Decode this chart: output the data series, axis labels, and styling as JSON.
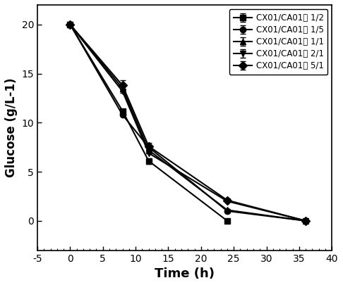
{
  "series": [
    {
      "label": "CX01/CA01： 1/2",
      "marker": "s",
      "x": [
        0,
        8,
        12,
        24
      ],
      "y": [
        20,
        11.2,
        6.1,
        0.0
      ],
      "yerr": [
        0,
        0,
        0.3,
        0
      ]
    },
    {
      "label": "CX01/CA01： 1/5",
      "marker": "o",
      "x": [
        0,
        8,
        12,
        24,
        36
      ],
      "y": [
        20,
        10.8,
        7.5,
        1.0,
        0.0
      ],
      "yerr": [
        0,
        0,
        0.25,
        0,
        0
      ]
    },
    {
      "label": "CX01/CA01： 1/1",
      "marker": "^",
      "x": [
        0,
        8,
        12,
        24,
        36
      ],
      "y": [
        20,
        13.5,
        7.2,
        1.1,
        0.0
      ],
      "yerr": [
        0,
        0.45,
        0,
        0.1,
        0
      ]
    },
    {
      "label": "CX01/CA01： 2/1",
      "marker": "v",
      "x": [
        0,
        8,
        12,
        24,
        36
      ],
      "y": [
        20,
        13.2,
        6.9,
        2.0,
        0.0
      ],
      "yerr": [
        0,
        0,
        0,
        0,
        0
      ]
    },
    {
      "label": "CX01/CA01： 5/1",
      "marker": "D",
      "x": [
        0,
        8,
        12,
        24,
        36
      ],
      "y": [
        20,
        13.8,
        7.6,
        2.1,
        0.0
      ],
      "yerr": [
        0,
        0.5,
        0.35,
        0.12,
        0
      ]
    }
  ],
  "xlabel": "Time (h)",
  "ylabel": "Glucose (g/L-1)",
  "xlim": [
    -5,
    40
  ],
  "ylim": [
    -3,
    22
  ],
  "xticks": [
    -5,
    0,
    5,
    10,
    15,
    20,
    25,
    30,
    35,
    40
  ],
  "yticks": [
    0,
    5,
    10,
    15,
    20
  ],
  "color": "#000000",
  "linewidth": 1.5,
  "markersize": 6,
  "legend_loc": "upper right",
  "figsize": [
    4.86,
    4.05
  ],
  "dpi": 100
}
